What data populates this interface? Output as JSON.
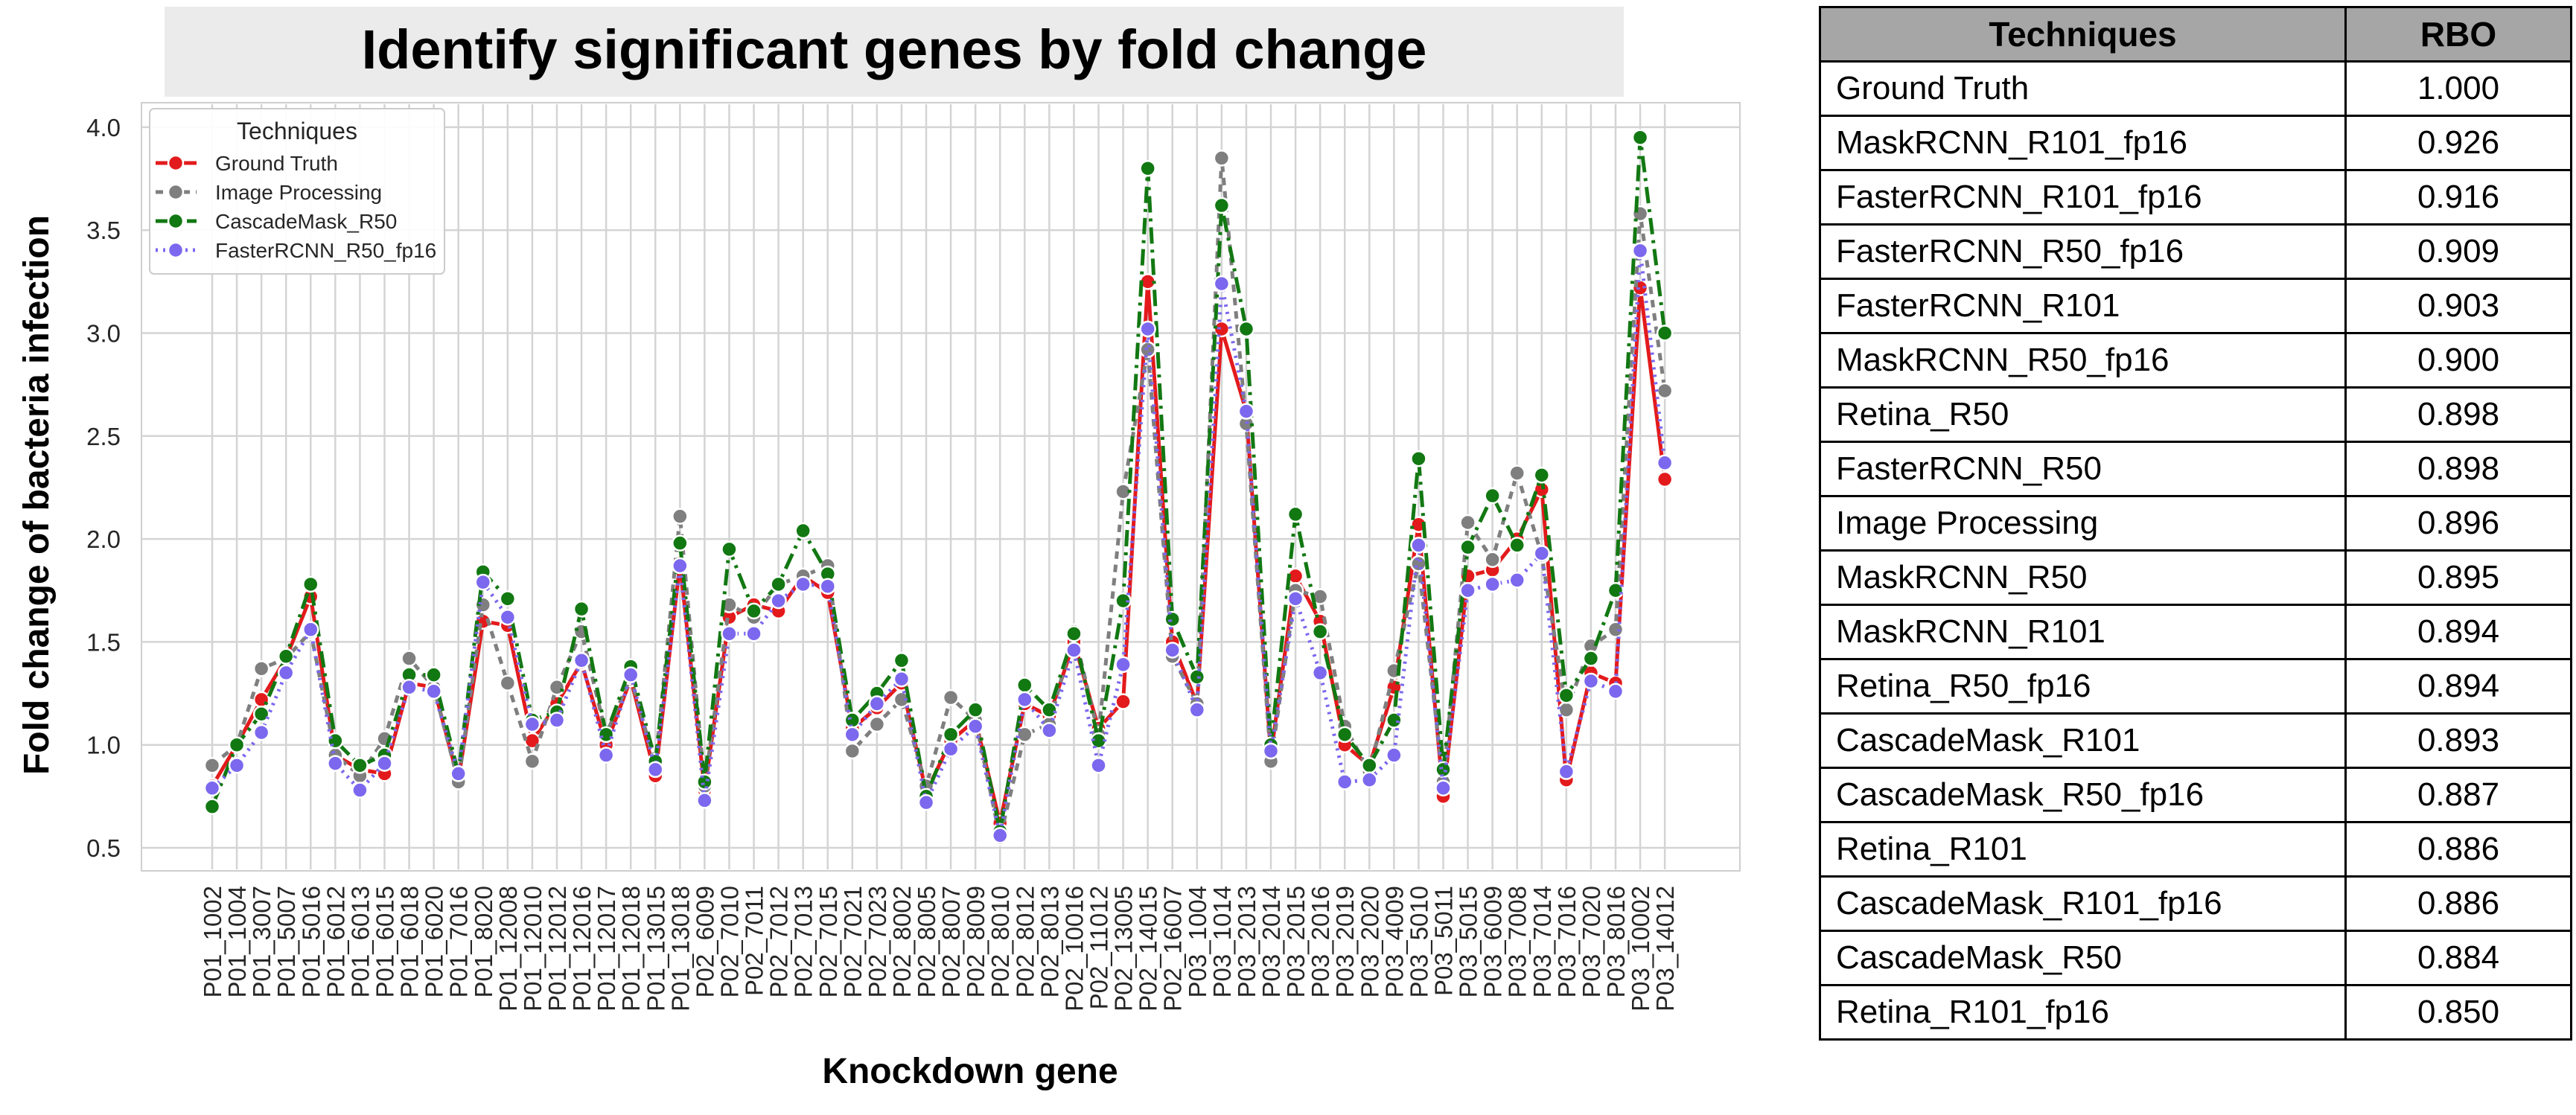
{
  "chart_data": {
    "type": "line",
    "title": "Identify significant genes by fold change",
    "xlabel": "Knockdown gene",
    "ylabel": "Fold change of bacteria infection",
    "ylim": [
      0.4,
      4.1
    ],
    "yticks": [
      "0.5",
      "1.0",
      "1.5",
      "2.0",
      "2.5",
      "3.0",
      "3.5",
      "4.0"
    ],
    "grid": true,
    "legend": {
      "title": "Techniques",
      "placement": "top-left"
    },
    "categories": [
      "P01_1002",
      "P01_1004",
      "P01_3007",
      "P01_5007",
      "P01_5016",
      "P01_6012",
      "P01_6013",
      "P01_6015",
      "P01_6018",
      "P01_6020",
      "P01_7016",
      "P01_8020",
      "P01_12008",
      "P01_12010",
      "P01_12012",
      "P01_12016",
      "P01_12017",
      "P01_12018",
      "P01_13015",
      "P01_13018",
      "P02_6009",
      "P02_7010",
      "P02_7011",
      "P02_7012",
      "P02_7013",
      "P02_7015",
      "P02_7021",
      "P02_7023",
      "P02_8002",
      "P02_8005",
      "P02_8007",
      "P02_8009",
      "P02_8010",
      "P02_8012",
      "P02_8013",
      "P02_10016",
      "P02_11012",
      "P02_13005",
      "P02_14015",
      "P02_16007",
      "P03_1004",
      "P03_1014",
      "P03_2013",
      "P03_2014",
      "P03_2015",
      "P03_2016",
      "P03_2019",
      "P03_2020",
      "P03_4009",
      "P03_5010",
      "P03_5011",
      "P03_5015",
      "P03_6009",
      "P03_7008",
      "P03_7014",
      "P03_7016",
      "P03_7020",
      "P03_8016",
      "P03_10002",
      "P03_14012"
    ],
    "series": [
      {
        "name": "Ground Truth",
        "color": "#e31a1c",
        "dash": "solid",
        "values": [
          0.8,
          1.0,
          1.22,
          1.42,
          1.72,
          0.95,
          0.88,
          0.86,
          1.3,
          1.28,
          0.83,
          1.6,
          1.58,
          1.02,
          1.2,
          1.4,
          1.0,
          1.32,
          0.85,
          1.88,
          0.78,
          1.62,
          1.68,
          1.65,
          1.82,
          1.74,
          1.08,
          1.18,
          1.3,
          0.77,
          1.02,
          1.12,
          0.62,
          1.2,
          1.14,
          1.5,
          1.08,
          1.21,
          3.25,
          1.5,
          1.2,
          3.02,
          2.62,
          0.95,
          1.82,
          1.6,
          1.0,
          0.9,
          1.28,
          2.07,
          0.75,
          1.82,
          1.85,
          2.0,
          2.24,
          0.83,
          1.35,
          1.3,
          3.22,
          2.29
        ]
      },
      {
        "name": "Image Processing",
        "color": "#7f7f7f",
        "dash": "10,8",
        "values": [
          0.9,
          1.0,
          1.37,
          1.42,
          1.55,
          0.95,
          0.85,
          1.03,
          1.42,
          1.28,
          0.82,
          1.68,
          1.3,
          0.92,
          1.28,
          1.55,
          1.05,
          1.33,
          0.9,
          2.11,
          0.8,
          1.68,
          1.62,
          1.78,
          1.82,
          1.87,
          0.97,
          1.1,
          1.22,
          0.8,
          1.23,
          1.12,
          0.55,
          1.05,
          1.1,
          1.55,
          1.05,
          2.23,
          2.92,
          1.43,
          1.2,
          3.85,
          2.56,
          0.92,
          1.75,
          1.72,
          1.09,
          0.87,
          1.36,
          1.88,
          0.82,
          2.08,
          1.9,
          2.32,
          1.92,
          1.17,
          1.48,
          1.56,
          3.58,
          2.72
        ]
      },
      {
        "name": "CascadeMask_R50",
        "color": "#127812",
        "dash": "22,8,4,8",
        "values": [
          0.7,
          1.0,
          1.15,
          1.43,
          1.78,
          1.02,
          0.9,
          0.95,
          1.34,
          1.34,
          0.86,
          1.84,
          1.71,
          1.12,
          1.16,
          1.66,
          1.05,
          1.38,
          0.92,
          1.98,
          0.82,
          1.95,
          1.65,
          1.78,
          2.04,
          1.83,
          1.12,
          1.25,
          1.41,
          0.75,
          1.05,
          1.17,
          0.58,
          1.29,
          1.17,
          1.54,
          1.02,
          1.7,
          3.8,
          1.61,
          1.33,
          3.62,
          3.02,
          1.0,
          2.12,
          1.55,
          1.05,
          0.9,
          1.12,
          2.39,
          0.88,
          1.96,
          2.21,
          1.97,
          2.31,
          1.24,
          1.42,
          1.75,
          3.95,
          3.0
        ]
      },
      {
        "name": "FasterRCNN_R50_fp16",
        "color": "#7b68ee",
        "dash": "3,7",
        "values": [
          0.79,
          0.9,
          1.06,
          1.35,
          1.56,
          0.91,
          0.78,
          0.91,
          1.28,
          1.26,
          0.86,
          1.79,
          1.62,
          1.1,
          1.12,
          1.41,
          0.95,
          1.34,
          0.88,
          1.87,
          0.73,
          1.54,
          1.54,
          1.7,
          1.78,
          1.77,
          1.05,
          1.2,
          1.32,
          0.72,
          0.98,
          1.09,
          0.56,
          1.22,
          1.07,
          1.46,
          0.9,
          1.39,
          3.02,
          1.46,
          1.17,
          3.24,
          2.62,
          0.97,
          1.71,
          1.35,
          0.82,
          0.83,
          0.95,
          1.97,
          0.79,
          1.75,
          1.78,
          1.8,
          1.93,
          0.87,
          1.31,
          1.26,
          3.4,
          2.37
        ]
      }
    ]
  },
  "table": {
    "headers": [
      "Techniques",
      "RBO"
    ],
    "rows": [
      [
        "Ground Truth",
        "1.000"
      ],
      [
        "MaskRCNN_R101_fp16",
        "0.926"
      ],
      [
        "FasterRCNN_R101_fp16",
        "0.916"
      ],
      [
        "FasterRCNN_R50_fp16",
        "0.909"
      ],
      [
        "FasterRCNN_R101",
        "0.903"
      ],
      [
        "MaskRCNN_R50_fp16",
        "0.900"
      ],
      [
        "Retina_R50",
        "0.898"
      ],
      [
        "FasterRCNN_R50",
        "0.898"
      ],
      [
        "Image Processing",
        "0.896"
      ],
      [
        "MaskRCNN_R50",
        "0.895"
      ],
      [
        "MaskRCNN_R101",
        "0.894"
      ],
      [
        "Retina_R50_fp16",
        "0.894"
      ],
      [
        "CascadeMask_R101",
        "0.893"
      ],
      [
        "CascadeMask_R50_fp16",
        "0.887"
      ],
      [
        "Retina_R101",
        "0.886"
      ],
      [
        "CascadeMask_R101_fp16",
        "0.886"
      ],
      [
        "CascadeMask_R50",
        "0.884"
      ],
      [
        "Retina_R101_fp16",
        "0.850"
      ]
    ]
  }
}
